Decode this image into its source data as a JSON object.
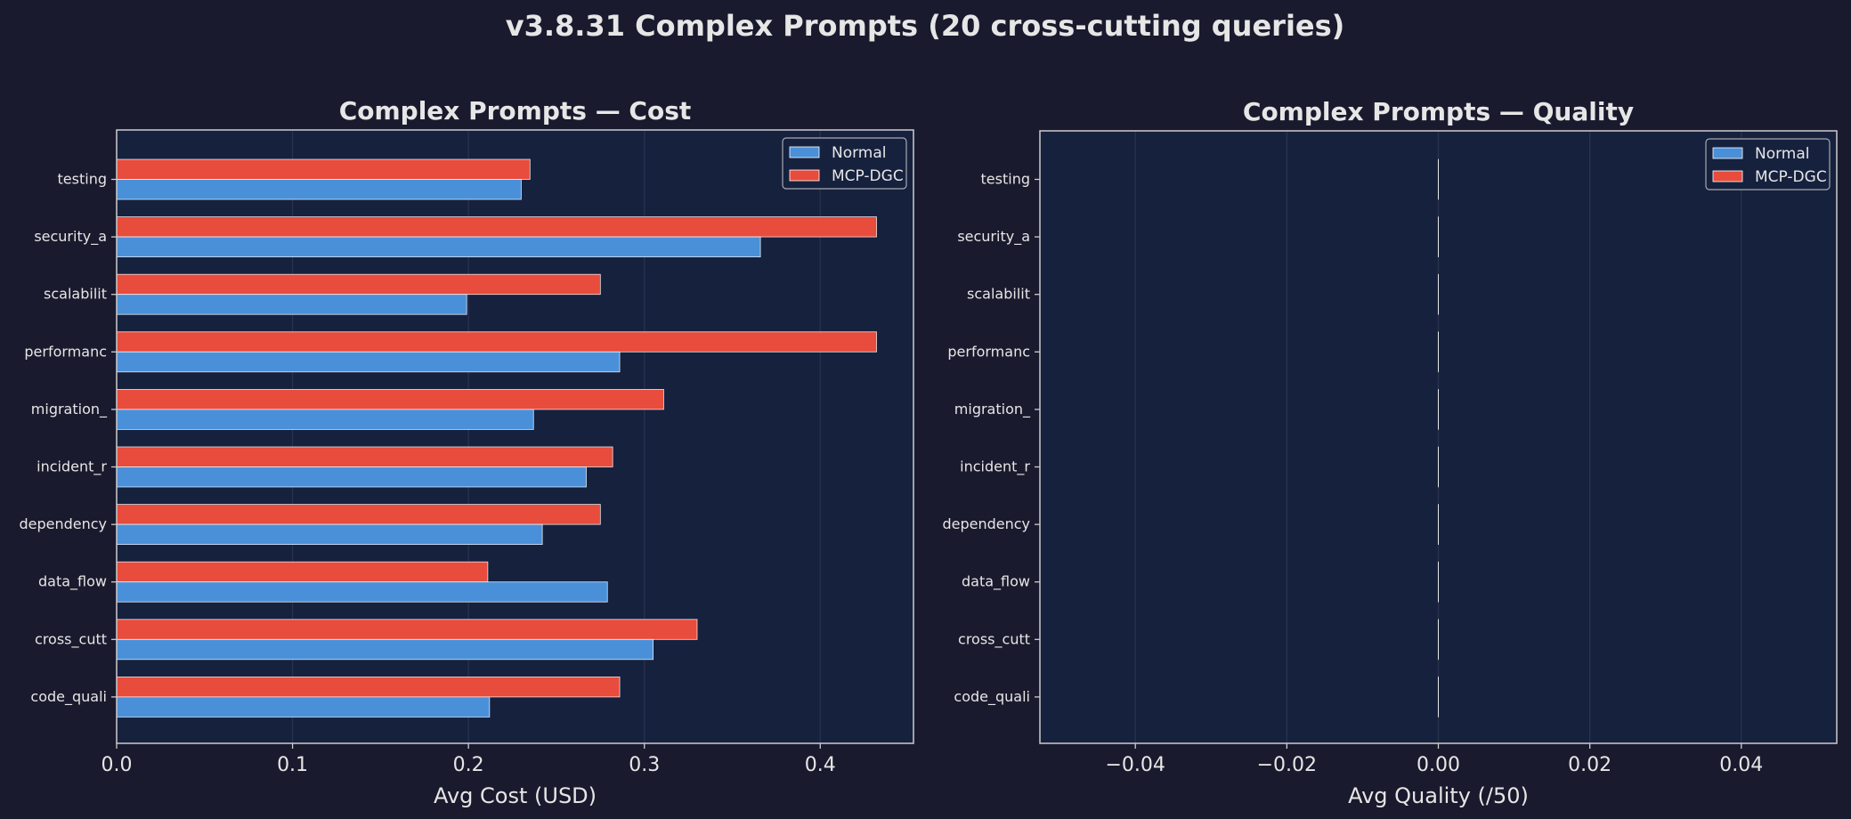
{
  "suptitle": "v3.8.31 Complex Prompts (20 cross-cutting queries)",
  "colors": {
    "background": "#1a1a2e",
    "plot_background": "#16213e",
    "normal": "#4a90d9",
    "mcp_dgc": "#e74c3c",
    "text": "#e6e6e6"
  },
  "chart_data": [
    {
      "type": "bar",
      "orientation": "horizontal",
      "title": "Complex Prompts — Cost",
      "xlabel": "Avg Cost (USD)",
      "ylabel": "",
      "xlim": [
        0,
        0.453
      ],
      "xticks": [
        0.0,
        0.1,
        0.2,
        0.3,
        0.4
      ],
      "xtick_labels": [
        "0.0",
        "0.1",
        "0.2",
        "0.3",
        "0.4"
      ],
      "grid": true,
      "legend": "top-right",
      "categories": [
        "testing",
        "security_a",
        "scalabilit",
        "performanc",
        "migration_",
        "incident_r",
        "dependency",
        "data_flow",
        "cross_cutt",
        "code_quali"
      ],
      "series": [
        {
          "name": "Normal",
          "values": [
            0.23,
            0.366,
            0.199,
            0.286,
            0.237,
            0.267,
            0.242,
            0.279,
            0.305,
            0.212
          ]
        },
        {
          "name": "MCP-DGC",
          "values": [
            0.235,
            0.432,
            0.275,
            0.432,
            0.311,
            0.282,
            0.275,
            0.211,
            0.33,
            0.286
          ]
        }
      ]
    },
    {
      "type": "bar",
      "orientation": "horizontal",
      "title": "Complex Prompts — Quality",
      "xlabel": "Avg Quality (/50)",
      "ylabel": "",
      "xlim": [
        -0.0526,
        0.0526
      ],
      "xticks": [
        -0.04,
        -0.02,
        0.0,
        0.02,
        0.04
      ],
      "xtick_labels": [
        "−0.04",
        "−0.02",
        "0.00",
        "0.02",
        "0.04"
      ],
      "grid": true,
      "legend": "top-right",
      "categories": [
        "testing",
        "security_a",
        "scalabilit",
        "performanc",
        "migration_",
        "incident_r",
        "dependency",
        "data_flow",
        "cross_cutt",
        "code_quali"
      ],
      "series": [
        {
          "name": "Normal",
          "values": [
            0,
            0,
            0,
            0,
            0,
            0,
            0,
            0,
            0,
            0
          ]
        },
        {
          "name": "MCP-DGC",
          "values": [
            0,
            0,
            0,
            0,
            0,
            0,
            0,
            0,
            0,
            0
          ]
        }
      ]
    }
  ]
}
